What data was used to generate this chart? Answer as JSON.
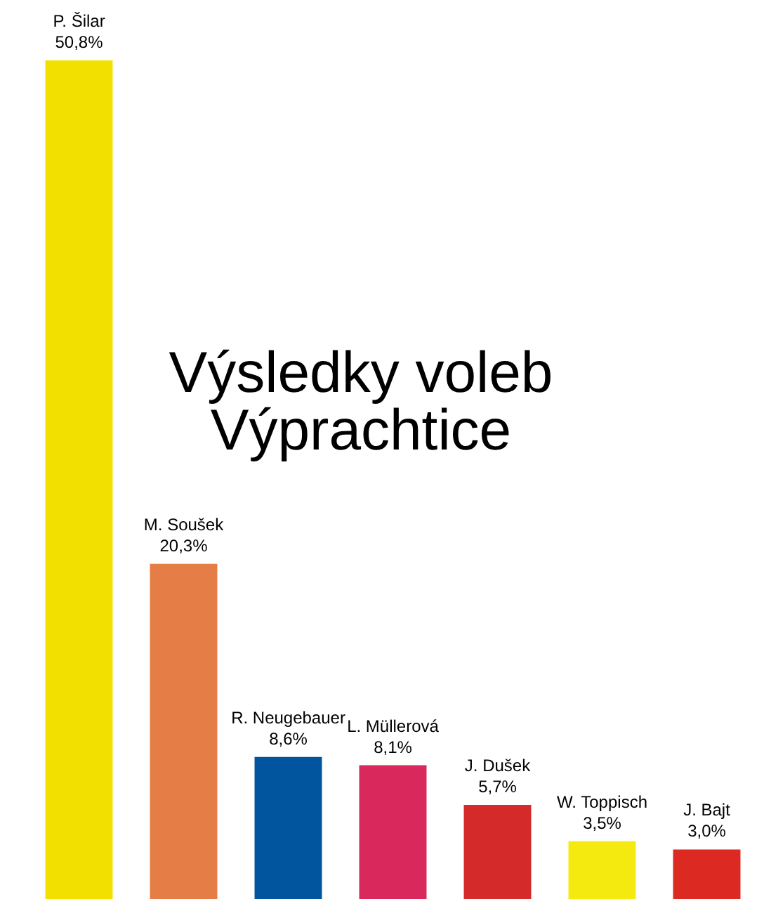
{
  "chart_data": {
    "type": "bar",
    "title": "Výsledky voleb Výprachtice",
    "categories": [
      "P. Šilar",
      "M. Soušek",
      "R. Neugebauer",
      "L. Müllerová",
      "J. Dušek",
      "W. Toppisch",
      "J. Bajt"
    ],
    "values": [
      50.8,
      20.3,
      8.6,
      8.1,
      5.7,
      3.5,
      3.0
    ],
    "colors": [
      "#f2e100",
      "#e57d46",
      "#00559e",
      "#d9285c",
      "#d42a2a",
      "#f5ea10",
      "#dc2a23"
    ],
    "value_labels": [
      "50,8%",
      "20,3%",
      "8,6%",
      "8,1%",
      "5,7%",
      "3,5%",
      "3,0%"
    ],
    "tick_labels": false,
    "legend": false
  }
}
